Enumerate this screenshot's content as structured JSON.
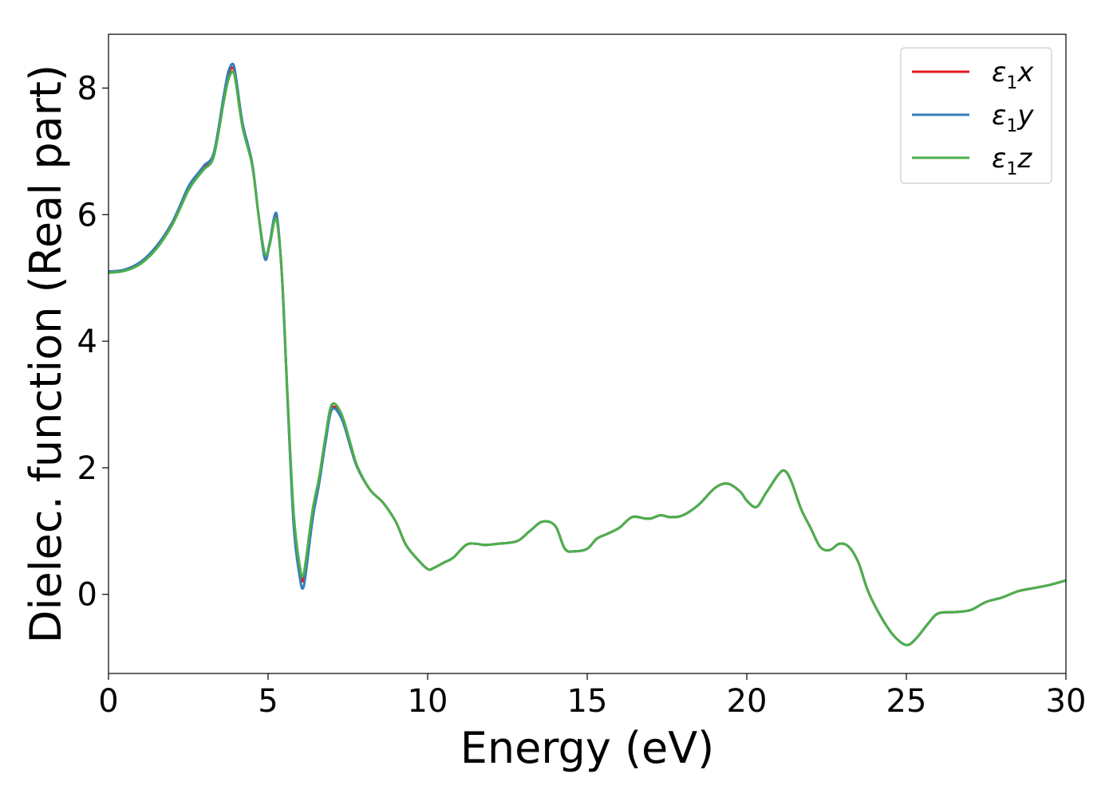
{
  "chart_data": {
    "type": "line",
    "xlabel": "Energy (eV)",
    "ylabel": "Dielec. function (Real part)",
    "xlim": [
      0,
      30
    ],
    "ylim": [
      -1.25,
      8.85
    ],
    "xticks": [
      "0",
      "5",
      "10",
      "15",
      "20",
      "25",
      "30"
    ],
    "yticks": [
      "0",
      "2",
      "4",
      "6",
      "8"
    ],
    "grid": false,
    "legend_position": "top-right",
    "series": [
      {
        "name": "ε1x",
        "symbol": "ε",
        "subscript": "1",
        "suffix": "x",
        "color": "#e41a1c",
        "x": [
          0,
          0.5,
          1,
          1.5,
          2,
          2.5,
          2.8,
          3.0,
          3.3,
          3.6,
          3.75,
          3.9,
          4.0,
          4.2,
          4.5,
          4.7,
          4.9,
          5.05,
          5.2,
          5.3,
          5.45,
          5.6,
          5.8,
          6.0,
          6.1,
          6.2,
          6.4,
          6.6,
          6.8,
          7.0,
          7.3,
          7.6,
          7.8,
          8.2,
          8.6,
          9.0,
          9.3,
          9.6,
          10.0,
          10.2,
          10.5,
          10.8,
          11.2,
          11.5,
          11.8,
          12.2,
          12.8,
          13.2,
          13.6,
          14.0,
          14.3,
          14.6,
          15.0,
          15.3,
          15.6,
          16.0,
          16.4,
          16.8,
          17.0,
          17.3,
          17.6,
          18.0,
          18.5,
          19.0,
          19.4,
          19.8,
          20.0,
          20.3,
          20.6,
          21.0,
          21.2,
          21.4,
          21.7,
          22.0,
          22.3,
          22.6,
          22.9,
          23.2,
          23.5,
          23.8,
          24.2,
          24.6,
          25.0,
          25.3,
          25.7,
          26.0,
          26.5,
          27.0,
          27.5,
          28.0,
          28.5,
          29.0,
          29.5,
          30.0
        ],
        "y": [
          5.1,
          5.13,
          5.25,
          5.5,
          5.88,
          6.42,
          6.62,
          6.75,
          6.95,
          7.8,
          8.2,
          8.32,
          8.1,
          7.4,
          6.8,
          6.0,
          5.35,
          5.55,
          5.95,
          5.85,
          4.9,
          3.2,
          1.2,
          0.35,
          0.22,
          0.55,
          1.3,
          1.8,
          2.45,
          2.95,
          2.8,
          2.3,
          2.0,
          1.65,
          1.45,
          1.15,
          0.8,
          0.6,
          0.4,
          0.42,
          0.5,
          0.58,
          0.78,
          0.8,
          0.78,
          0.8,
          0.84,
          1.0,
          1.15,
          1.08,
          0.72,
          0.68,
          0.72,
          0.88,
          0.95,
          1.05,
          1.22,
          1.2,
          1.2,
          1.25,
          1.22,
          1.25,
          1.42,
          1.68,
          1.75,
          1.62,
          1.48,
          1.38,
          1.6,
          1.9,
          1.95,
          1.78,
          1.35,
          1.05,
          0.75,
          0.7,
          0.8,
          0.75,
          0.5,
          0.05,
          -0.35,
          -0.65,
          -0.8,
          -0.7,
          -0.45,
          -0.3,
          -0.28,
          -0.25,
          -0.12,
          -0.05,
          0.05,
          0.1,
          0.15,
          0.22
        ]
      },
      {
        "name": "ε1y",
        "symbol": "ε",
        "subscript": "1",
        "suffix": "y",
        "color": "#377eb8",
        "x": [
          0,
          0.5,
          1,
          1.5,
          2,
          2.5,
          2.8,
          3.0,
          3.3,
          3.6,
          3.75,
          3.9,
          4.0,
          4.2,
          4.5,
          4.7,
          4.9,
          5.05,
          5.2,
          5.3,
          5.45,
          5.6,
          5.8,
          6.0,
          6.1,
          6.2,
          6.4,
          6.6,
          6.8,
          7.0,
          7.3,
          7.6,
          7.8,
          8.2,
          8.6,
          9.0,
          9.3,
          9.6,
          10.0,
          10.2,
          10.5,
          10.8,
          11.2,
          11.5,
          11.8,
          12.2,
          12.8,
          13.2,
          13.6,
          14.0,
          14.3,
          14.6,
          15.0,
          15.3,
          15.6,
          16.0,
          16.4,
          16.8,
          17.0,
          17.3,
          17.6,
          18.0,
          18.5,
          19.0,
          19.4,
          19.8,
          20.0,
          20.3,
          20.6,
          21.0,
          21.2,
          21.4,
          21.7,
          22.0,
          22.3,
          22.6,
          22.9,
          23.2,
          23.5,
          23.8,
          24.2,
          24.6,
          25.0,
          25.3,
          25.7,
          26.0,
          26.5,
          27.0,
          27.5,
          28.0,
          28.5,
          29.0,
          29.5,
          30.0
        ],
        "y": [
          5.1,
          5.13,
          5.25,
          5.5,
          5.88,
          6.44,
          6.65,
          6.78,
          6.98,
          7.85,
          8.25,
          8.38,
          8.15,
          7.45,
          6.82,
          6.0,
          5.3,
          5.55,
          5.98,
          5.9,
          4.9,
          3.2,
          1.1,
          0.25,
          0.1,
          0.4,
          1.2,
          1.75,
          2.4,
          2.92,
          2.78,
          2.3,
          2.0,
          1.65,
          1.45,
          1.15,
          0.8,
          0.6,
          0.4,
          0.42,
          0.5,
          0.58,
          0.78,
          0.8,
          0.78,
          0.8,
          0.84,
          1.0,
          1.15,
          1.08,
          0.72,
          0.68,
          0.72,
          0.88,
          0.95,
          1.05,
          1.22,
          1.2,
          1.2,
          1.25,
          1.22,
          1.25,
          1.42,
          1.68,
          1.75,
          1.62,
          1.48,
          1.38,
          1.6,
          1.9,
          1.95,
          1.78,
          1.35,
          1.05,
          0.75,
          0.7,
          0.8,
          0.75,
          0.5,
          0.05,
          -0.35,
          -0.65,
          -0.8,
          -0.7,
          -0.45,
          -0.3,
          -0.28,
          -0.25,
          -0.12,
          -0.05,
          0.05,
          0.1,
          0.15,
          0.22
        ]
      },
      {
        "name": "ε1z",
        "symbol": "ε",
        "subscript": "1",
        "suffix": "z",
        "color": "#4daf4a",
        "x": [
          0,
          0.5,
          1,
          1.5,
          2,
          2.5,
          2.8,
          3.0,
          3.3,
          3.6,
          3.75,
          3.9,
          4.0,
          4.2,
          4.5,
          4.7,
          4.9,
          5.05,
          5.2,
          5.3,
          5.45,
          5.6,
          5.8,
          6.0,
          6.1,
          6.2,
          6.4,
          6.6,
          6.8,
          7.0,
          7.3,
          7.6,
          7.8,
          8.2,
          8.6,
          9.0,
          9.3,
          9.6,
          10.0,
          10.2,
          10.5,
          10.8,
          11.2,
          11.5,
          11.8,
          12.2,
          12.8,
          13.2,
          13.6,
          14.0,
          14.3,
          14.6,
          15.0,
          15.3,
          15.6,
          16.0,
          16.4,
          16.8,
          17.0,
          17.3,
          17.6,
          18.0,
          18.5,
          19.0,
          19.4,
          19.8,
          20.0,
          20.3,
          20.6,
          21.0,
          21.2,
          21.4,
          21.7,
          22.0,
          22.3,
          22.6,
          22.9,
          23.2,
          23.5,
          23.8,
          24.2,
          24.6,
          25.0,
          25.3,
          25.7,
          26.0,
          26.5,
          27.0,
          27.5,
          28.0,
          28.5,
          29.0,
          29.5,
          30.0
        ],
        "y": [
          5.08,
          5.11,
          5.22,
          5.46,
          5.84,
          6.38,
          6.6,
          6.72,
          6.92,
          7.75,
          8.12,
          8.26,
          8.05,
          7.38,
          6.78,
          6.0,
          5.38,
          5.52,
          5.9,
          5.82,
          4.92,
          3.25,
          1.3,
          0.42,
          0.3,
          0.6,
          1.35,
          1.85,
          2.5,
          3.0,
          2.85,
          2.35,
          2.02,
          1.65,
          1.45,
          1.15,
          0.8,
          0.6,
          0.4,
          0.42,
          0.5,
          0.58,
          0.78,
          0.8,
          0.78,
          0.8,
          0.84,
          1.0,
          1.15,
          1.08,
          0.72,
          0.68,
          0.72,
          0.88,
          0.95,
          1.05,
          1.22,
          1.2,
          1.2,
          1.25,
          1.22,
          1.25,
          1.42,
          1.68,
          1.75,
          1.62,
          1.48,
          1.38,
          1.6,
          1.9,
          1.95,
          1.78,
          1.35,
          1.05,
          0.75,
          0.7,
          0.8,
          0.75,
          0.5,
          0.05,
          -0.35,
          -0.65,
          -0.8,
          -0.7,
          -0.45,
          -0.3,
          -0.28,
          -0.25,
          -0.12,
          -0.05,
          0.05,
          0.1,
          0.15,
          0.22
        ]
      }
    ]
  }
}
